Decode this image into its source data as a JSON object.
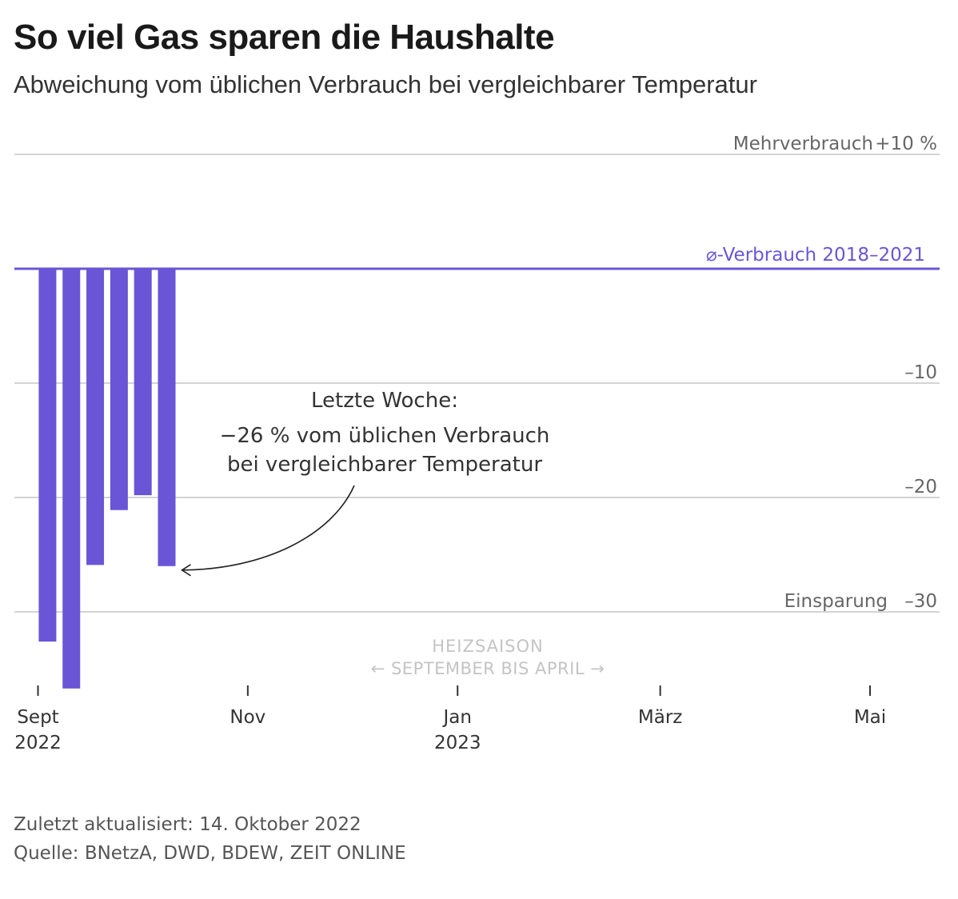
{
  "header": {
    "title": "So viel Gas sparen die Haushalte",
    "subtitle": "Abweichung vom üblichen Verbrauch bei vergleichbarer Temperatur"
  },
  "chart_data": {
    "type": "bar",
    "title": "So viel Gas sparen die Haushalte",
    "subtitle": "Abweichung vom üblichen Verbrauch bei vergleichbarer Temperatur",
    "unit": "%",
    "ylim": [
      -36,
      12
    ],
    "y_ticks": [
      {
        "value": 10,
        "label": "+10 %",
        "prefix": "Mehrverbrauch"
      },
      {
        "value": -10,
        "label": "–10",
        "prefix": ""
      },
      {
        "value": -20,
        "label": "–20",
        "prefix": ""
      },
      {
        "value": -30,
        "label": "–30",
        "prefix": "Einsparung"
      }
    ],
    "baseline": {
      "value": 0,
      "label": "⌀-Verbrauch 2018–2021",
      "color": "#6a55d6"
    },
    "x_ticks": [
      {
        "label": "Sept",
        "sublabel": "2022",
        "week": 0
      },
      {
        "label": "Nov",
        "sublabel": "",
        "week": 8.8
      },
      {
        "label": "Jan",
        "sublabel": "2023",
        "week": 17.6
      },
      {
        "label": "März",
        "sublabel": "",
        "week": 26.1
      },
      {
        "label": "Mai",
        "sublabel": "",
        "week": 34.9
      }
    ],
    "xlim": [
      -0.9,
      37.5
    ],
    "series": [
      {
        "name": "Abweichung",
        "color": "#6a55d6",
        "weeks": [
          0.4,
          1.4,
          2.4,
          3.4,
          4.4,
          5.4
        ],
        "values": [
          -32.6,
          -36.7,
          -25.9,
          -21.1,
          -19.8,
          -26.0
        ]
      }
    ],
    "season_label": {
      "line1": "HEIZSAISON",
      "line2": "← SEPTEMBER BIS APRIL →"
    },
    "annotation": {
      "lines": [
        "Letzte Woche:",
        "−26 % vom üblichen Verbrauch",
        "bei vergleichbarer Temperatur"
      ],
      "target_index": 5
    }
  },
  "footer": {
    "updated": "Zuletzt aktualisiert: 14. Oktober 2022",
    "source": "Quelle: BNetzA, DWD, BDEW, ZEIT ONLINE"
  }
}
